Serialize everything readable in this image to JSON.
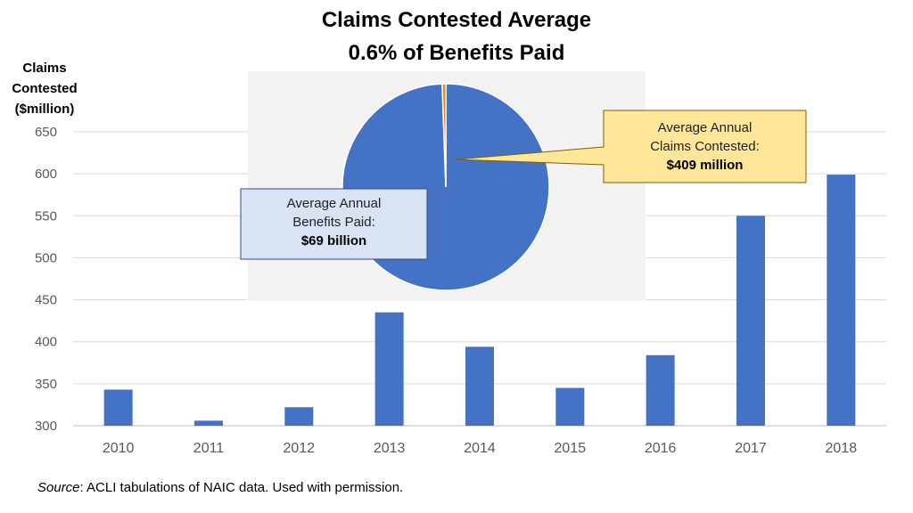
{
  "chart_data": {
    "type": "bar",
    "title": "Claims Contested Average",
    "subtitle": "0.6% of Benefits Paid",
    "ylabel": [
      "Claims",
      "Contested",
      "($million)"
    ],
    "categories": [
      "2010",
      "2011",
      "2012",
      "2013",
      "2014",
      "2015",
      "2016",
      "2017",
      "2018"
    ],
    "values": [
      343,
      306,
      322,
      435,
      394,
      345,
      384,
      550,
      599
    ],
    "ylim": [
      300,
      650
    ],
    "yticks": [
      300,
      350,
      400,
      450,
      500,
      550,
      600,
      650
    ],
    "grid": true,
    "bar_color": "#4472C4",
    "inset_pie": {
      "type": "pie",
      "slices": [
        {
          "label": "Average Annual Benefits Paid",
          "value": 69000,
          "color": "#4472C4"
        },
        {
          "label": "Average Annual Claims Contested",
          "value": 409,
          "color": "#ED7D31"
        }
      ],
      "background": "#F2F2F2",
      "callouts": {
        "benefits": {
          "line1": "Average Annual",
          "line2": "Benefits Paid:",
          "value": "$69 billion",
          "fill": "#DAE3F3"
        },
        "contested": {
          "line1": "Average Annual",
          "line2": "Claims Contested:",
          "value": "$409 million",
          "fill": "#FFE699"
        }
      }
    }
  },
  "source": {
    "label": "Source",
    "text": ": ACLI tabulations of NAIC data. Used with permission."
  }
}
